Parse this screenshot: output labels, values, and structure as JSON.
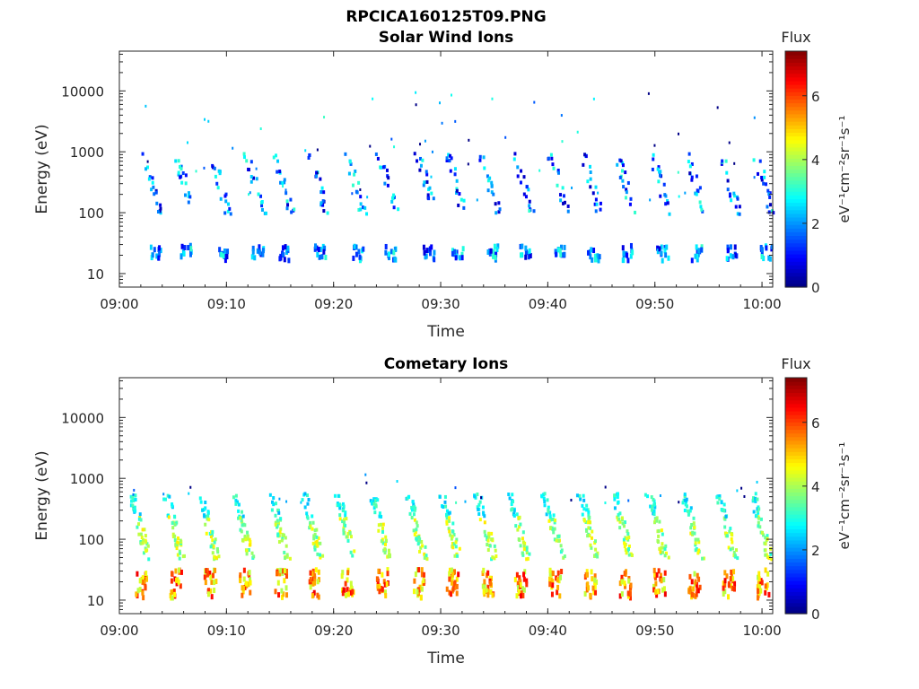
{
  "figure": {
    "title": "RPCICA160125T09.PNG"
  },
  "chart_data": [
    {
      "type": "heatmap",
      "title": "Solar Wind Ions",
      "xlabel": "Time",
      "ylabel": "Energy (eV)",
      "x_ticks": [
        "09:00",
        "09:10",
        "09:20",
        "09:30",
        "09:40",
        "09:50",
        "10:00"
      ],
      "x_range": [
        "09:00",
        "10:01"
      ],
      "y_scale": "log",
      "y_ticks": [
        "10",
        "100",
        "1000",
        "10000"
      ],
      "ylim": [
        6,
        45000
      ],
      "colorbar": {
        "title": "Flux",
        "label": "eV⁻¹cm⁻²sr⁻¹s⁻¹",
        "ticks": [
          "0",
          "2",
          "4",
          "6"
        ],
        "range": [
          0,
          7.4
        ],
        "colormap": "jet"
      },
      "description_of_data": "Sparse scattered pixels; recurring vertical streaks roughly every 3 minutes between ~15 eV and ~1000 eV, intensity mostly 0.5-3.5",
      "streak_times_min": [
        3.2,
        6.2,
        9.5,
        12.8,
        15.4,
        18.7,
        22.1,
        25.2,
        28.8,
        31.5,
        34.7,
        37.8,
        41.1,
        44.2,
        47.3,
        50.6,
        53.9,
        57.1,
        60.3
      ],
      "low_band_ev": [
        18,
        32
      ],
      "high_band_ev": [
        100,
        1000
      ]
    },
    {
      "type": "heatmap",
      "title": "Cometary Ions",
      "xlabel": "Time",
      "ylabel": "Energy (eV)",
      "x_ticks": [
        "09:00",
        "09:10",
        "09:20",
        "09:30",
        "09:40",
        "09:50",
        "10:00"
      ],
      "x_range": [
        "09:00",
        "10:01"
      ],
      "y_scale": "log",
      "y_ticks": [
        "10",
        "100",
        "1000",
        "10000"
      ],
      "ylim": [
        6,
        45000
      ],
      "colorbar": {
        "title": "Flux",
        "label": "eV⁻¹cm⁻²sr⁻¹s⁻¹",
        "ticks": [
          "0",
          "2",
          "4",
          "6"
        ],
        "range": [
          0,
          7.4
        ],
        "colormap": "jet"
      },
      "description_of_data": "Periodic streaks every ~3 minutes: dispersed band from ~600 eV down to ~50 eV (flux 2.5-4.5) and strong low-energy band 12-35 eV (flux 4-6.5)",
      "streak_times_min": [
        2.0,
        5.2,
        8.4,
        11.6,
        15.0,
        18.1,
        21.2,
        24.5,
        27.8,
        31.0,
        34.3,
        37.4,
        40.6,
        43.9,
        47.1,
        50.3,
        53.6,
        56.8,
        60.0
      ],
      "low_band_ev": [
        12,
        35
      ],
      "high_band_ev": [
        50,
        600
      ]
    }
  ]
}
